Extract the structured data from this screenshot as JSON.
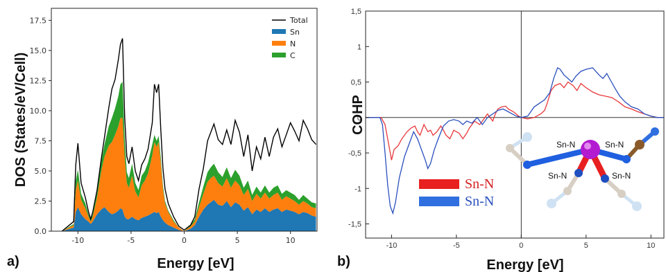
{
  "panels": {
    "a": "a)",
    "b": "b)"
  },
  "chart_data": [
    {
      "type": "area",
      "xlabel": "Energy [eV]",
      "ylabel": "DOS (States/eV/Cell)",
      "xlim": [
        -12.5,
        12.5
      ],
      "ylim": [
        0,
        18.5
      ],
      "xticks": [
        -10,
        -5,
        0,
        5,
        10
      ],
      "yticks": [
        "0.0",
        "2.5",
        "5.0",
        "7.5",
        "10.0",
        "12.5",
        "15.0",
        "17.5"
      ],
      "ytick_values": [
        0,
        2.5,
        5,
        7.5,
        10,
        12.5,
        15,
        17.5
      ],
      "legend_position": "top-right",
      "stacked": true,
      "x": [
        -11.5,
        -10.4,
        -10.2,
        -10.0,
        -9.7,
        -9.3,
        -9.0,
        -8.8,
        -8.6,
        -8.2,
        -7.8,
        -7.5,
        -7.1,
        -6.8,
        -6.5,
        -6.2,
        -6.0,
        -5.8,
        -5.6,
        -5.4,
        -5.2,
        -4.9,
        -4.6,
        -4.3,
        -4.0,
        -3.7,
        -3.4,
        -3.0,
        -2.8,
        -2.6,
        -2.4,
        -2.2,
        -2.0,
        -1.8,
        -1.5,
        -1.0,
        -0.5,
        0.0,
        0.6,
        1.0,
        1.4,
        1.8,
        2.2,
        2.5,
        2.8,
        3.2,
        3.6,
        4.0,
        4.4,
        4.8,
        5.2,
        5.6,
        6.0,
        6.4,
        6.8,
        7.2,
        7.6,
        8.0,
        8.4,
        8.8,
        9.2,
        9.6,
        10.0,
        10.4,
        10.8,
        11.2,
        11.6,
        12.0,
        12.4
      ],
      "series": [
        {
          "name": "Total",
          "color": "#000000",
          "values": [
            0,
            0.8,
            5.5,
            7.3,
            4.0,
            2.8,
            1.6,
            1.0,
            1.6,
            3.4,
            6.0,
            7.8,
            10.2,
            11.8,
            12.6,
            14.2,
            15.5,
            16.0,
            9.5,
            6.2,
            5.6,
            7.0,
            5.0,
            4.2,
            5.5,
            6.0,
            6.8,
            9.0,
            12.2,
            11.5,
            12.2,
            8.4,
            5.2,
            3.5,
            2.3,
            1.2,
            0.4,
            0.1,
            0.5,
            1.2,
            3.5,
            5.2,
            7.5,
            8.2,
            8.9,
            7.6,
            7.2,
            8.4,
            7.2,
            9.2,
            8.2,
            6.2,
            8.0,
            5.0,
            7.0,
            6.0,
            7.8,
            6.2,
            7.8,
            8.5,
            7.0,
            8.0,
            9.0,
            8.3,
            7.5,
            9.2,
            8.5,
            7.6,
            7.2
          ]
        },
        {
          "name": "Sn",
          "color": "#1f77b4",
          "values": [
            0,
            0.3,
            1.6,
            2.0,
            1.4,
            1.0,
            0.8,
            0.6,
            0.8,
            1.4,
            1.8,
            2.0,
            1.6,
            1.4,
            1.5,
            1.7,
            1.9,
            1.8,
            1.2,
            1.0,
            1.0,
            1.2,
            1.0,
            0.9,
            1.1,
            1.2,
            1.3,
            1.5,
            1.6,
            1.5,
            1.6,
            1.2,
            0.9,
            0.7,
            0.5,
            0.3,
            0.1,
            0,
            0.2,
            0.5,
            1.2,
            1.8,
            2.2,
            2.4,
            2.6,
            2.2,
            2.1,
            2.5,
            2.0,
            2.4,
            2.2,
            1.7,
            2.0,
            1.4,
            1.8,
            1.6,
            1.9,
            1.6,
            1.8,
            1.9,
            1.6,
            1.8,
            1.7,
            1.6,
            1.4,
            1.6,
            1.5,
            1.3,
            1.2
          ]
        },
        {
          "name": "N",
          "color": "#ff7f0e",
          "values": [
            0,
            0.2,
            1.8,
            2.2,
            1.2,
            0.9,
            0.4,
            0.2,
            0.4,
            1.4,
            3.2,
            4.2,
            5.5,
            6.0,
            6.5,
            7.0,
            7.5,
            7.6,
            5.0,
            3.0,
            2.6,
            3.4,
            2.3,
            1.9,
            2.7,
            3.0,
            3.5,
            4.8,
            5.8,
            5.5,
            5.8,
            4.5,
            2.6,
            1.6,
            1.1,
            0.5,
            0.2,
            0,
            0.2,
            0.3,
            0.8,
            1.3,
            1.9,
            2.0,
            2.0,
            1.8,
            1.6,
            1.9,
            1.6,
            1.8,
            1.6,
            1.3,
            1.5,
            1.1,
            1.3,
            1.1,
            1.3,
            1.1,
            1.2,
            1.3,
            1.0,
            1.1,
            1.0,
            0.9,
            0.8,
            0.9,
            0.8,
            0.7,
            0.7
          ]
        },
        {
          "name": "C",
          "color": "#2ca02c",
          "values": [
            0,
            0.1,
            0.8,
            0.9,
            0.5,
            0.4,
            0.2,
            0.1,
            0.2,
            0.4,
            0.8,
            1.0,
            1.6,
            2.0,
            2.2,
            2.5,
            2.8,
            3.0,
            1.6,
            0.9,
            0.8,
            1.0,
            0.7,
            0.6,
            0.8,
            0.8,
            0.9,
            0.9,
            0.6,
            0.5,
            0.5,
            0.4,
            0.3,
            0.2,
            0.1,
            0.1,
            0,
            0,
            0.1,
            0.2,
            0.4,
            0.6,
            0.8,
            0.9,
            1.0,
            0.9,
            0.8,
            0.9,
            0.8,
            0.9,
            0.8,
            0.6,
            0.7,
            0.5,
            0.6,
            0.5,
            0.6,
            0.5,
            0.6,
            0.6,
            0.5,
            0.5,
            0.5,
            0.5,
            0.4,
            0.5,
            0.4,
            0.4,
            0.4
          ]
        }
      ]
    },
    {
      "type": "line",
      "xlabel": "Energy [eV]",
      "ylabel": "COHP",
      "xlim": [
        -12,
        11
      ],
      "ylim": [
        -1.7,
        1.5
      ],
      "xticks": [
        -10,
        -5,
        0,
        5,
        10
      ],
      "yticks": [
        "-1,5",
        "-1",
        "-0,5",
        "0",
        "0,5",
        "1",
        "1,5"
      ],
      "ytick_values": [
        -1.5,
        -1,
        -0.5,
        0,
        0.5,
        1,
        1.5
      ],
      "legend_position": "bottom-left",
      "series": [
        {
          "name": "Sn-N",
          "color": "#e8373a",
          "x": [
            -12,
            -10.8,
            -10.5,
            -10.2,
            -10.0,
            -9.8,
            -9.5,
            -9.2,
            -8.8,
            -8.5,
            -8.2,
            -8.0,
            -7.8,
            -7.5,
            -7.2,
            -7.0,
            -6.8,
            -6.5,
            -6.2,
            -6.0,
            -5.8,
            -5.5,
            -5.2,
            -5.0,
            -4.8,
            -4.5,
            -4.2,
            -4.0,
            -3.6,
            -3.2,
            -3.0,
            -2.6,
            -2.2,
            -2.0,
            -1.8,
            -1.5,
            -1.2,
            -1.0,
            -0.6,
            -0.2,
            0,
            0.5,
            1.0,
            1.5,
            1.8,
            2.0,
            2.3,
            2.6,
            3.0,
            3.3,
            3.6,
            4.0,
            4.3,
            4.6,
            5.0,
            5.5,
            6.0,
            6.5,
            7.0,
            7.5,
            8.0,
            8.5,
            9.0,
            9.5,
            10.0,
            10.5,
            11.0
          ],
          "y": [
            0,
            0,
            -0.1,
            -0.4,
            -0.6,
            -0.45,
            -0.4,
            -0.3,
            -0.2,
            -0.15,
            -0.12,
            -0.2,
            -0.25,
            -0.1,
            -0.2,
            -0.18,
            -0.25,
            -0.2,
            -0.12,
            -0.18,
            -0.25,
            -0.3,
            -0.18,
            -0.2,
            -0.22,
            -0.3,
            -0.22,
            -0.15,
            -0.05,
            -0.1,
            -0.05,
            0.05,
            -0.05,
            0.05,
            0.12,
            0.15,
            0.16,
            0.12,
            0.08,
            0.02,
            0,
            -0.02,
            0.0,
            0.05,
            0.1,
            0.2,
            0.38,
            0.45,
            0.48,
            0.42,
            0.5,
            0.45,
            0.38,
            0.48,
            0.42,
            0.36,
            0.32,
            0.3,
            0.28,
            0.22,
            0.15,
            0.12,
            0.08,
            0.05,
            0.02,
            0,
            0
          ]
        },
        {
          "name": "Sn-N",
          "color": "#2a4fbd",
          "x": [
            -12,
            -10.9,
            -10.7,
            -10.5,
            -10.3,
            -10.1,
            -9.9,
            -9.7,
            -9.4,
            -9.0,
            -8.6,
            -8.3,
            -8.0,
            -7.7,
            -7.4,
            -7.2,
            -7.0,
            -6.7,
            -6.4,
            -6.0,
            -5.6,
            -5.2,
            -4.8,
            -4.5,
            -4.2,
            -3.8,
            -3.4,
            -3.0,
            -2.6,
            -2.2,
            -1.8,
            -1.4,
            -1.0,
            -0.7,
            -0.4,
            0,
            0.5,
            1.0,
            1.4,
            1.8,
            2.2,
            2.5,
            2.8,
            3.0,
            3.3,
            3.6,
            3.9,
            4.2,
            4.6,
            5.0,
            5.5,
            6.0,
            6.3,
            6.6,
            6.9,
            7.2,
            7.6,
            8.0,
            8.5,
            9.0,
            9.5,
            10.0,
            10.5,
            11.0
          ],
          "y": [
            0,
            0,
            -0.1,
            -0.5,
            -0.95,
            -1.25,
            -1.35,
            -1.2,
            -0.85,
            -0.55,
            -0.35,
            -0.2,
            -0.3,
            -0.45,
            -0.6,
            -0.72,
            -0.65,
            -0.45,
            -0.3,
            -0.12,
            -0.05,
            -0.03,
            -0.05,
            -0.1,
            -0.05,
            -0.08,
            0.0,
            -0.1,
            0.0,
            0.05,
            0.1,
            0.12,
            0.08,
            0.05,
            0.02,
            0,
            0.02,
            0.15,
            0.2,
            0.25,
            0.35,
            0.55,
            0.7,
            0.68,
            0.6,
            0.55,
            0.5,
            0.58,
            0.65,
            0.68,
            0.7,
            0.6,
            0.55,
            0.62,
            0.52,
            0.42,
            0.3,
            0.22,
            0.15,
            0.12,
            0.05,
            0.02,
            0,
            0
          ]
        }
      ]
    }
  ],
  "molecule": {
    "labels": [
      "Sn-N",
      "Sn-N",
      "Sn-N",
      "Sn-N"
    ]
  }
}
